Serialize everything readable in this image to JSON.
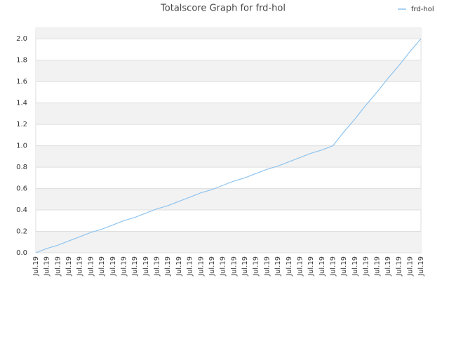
{
  "chart_data": {
    "type": "line",
    "title": "Totalscore Graph for frd-hol",
    "categories": [
      "Jul.19",
      "Jul.19",
      "Jul.19",
      "Jul.19",
      "Jul.19",
      "Jul.19",
      "Jul.19",
      "Jul.19",
      "Jul.19",
      "Jul.19",
      "Jul.19",
      "Jul.19",
      "Jul.19",
      "Jul.19",
      "Jul.19",
      "Jul.19",
      "Jul.19",
      "Jul.19",
      "Jul.19",
      "Jul.19",
      "Jul.19",
      "Jul.19",
      "Jul.19",
      "Jul.19",
      "Jul.19",
      "Jul.19",
      "Jul.19",
      "Jul.19",
      "Jul.19",
      "Jul.19",
      "Jul.19",
      "Jul.19",
      "Jul.19",
      "Jul.19",
      "Jul.19",
      "Jul.19"
    ],
    "series": [
      {
        "name": "frd-hol",
        "color": "#8ec4f0",
        "values": [
          0,
          0.04,
          0.07,
          0.11,
          0.15,
          0.19,
          0.22,
          0.26,
          0.3,
          0.33,
          0.37,
          0.41,
          0.44,
          0.48,
          0.52,
          0.56,
          0.59,
          0.63,
          0.67,
          0.7,
          0.74,
          0.78,
          0.81,
          0.85,
          0.89,
          0.93,
          0.96,
          1.0,
          1.13,
          1.25,
          1.38,
          1.5,
          1.63,
          1.75,
          1.88,
          2.0
        ]
      }
    ],
    "ylim": [
      0,
      2.1
    ],
    "yticks": [
      {
        "value": 0,
        "label": "0.0"
      },
      0.2,
      0.4,
      0.6,
      0.8,
      {
        "value": 1,
        "label": "1.0"
      },
      1.2,
      1.4,
      1.6,
      1.8,
      {
        "value": 2,
        "label": "2.0"
      }
    ],
    "grid": true,
    "legend": "top-right"
  }
}
